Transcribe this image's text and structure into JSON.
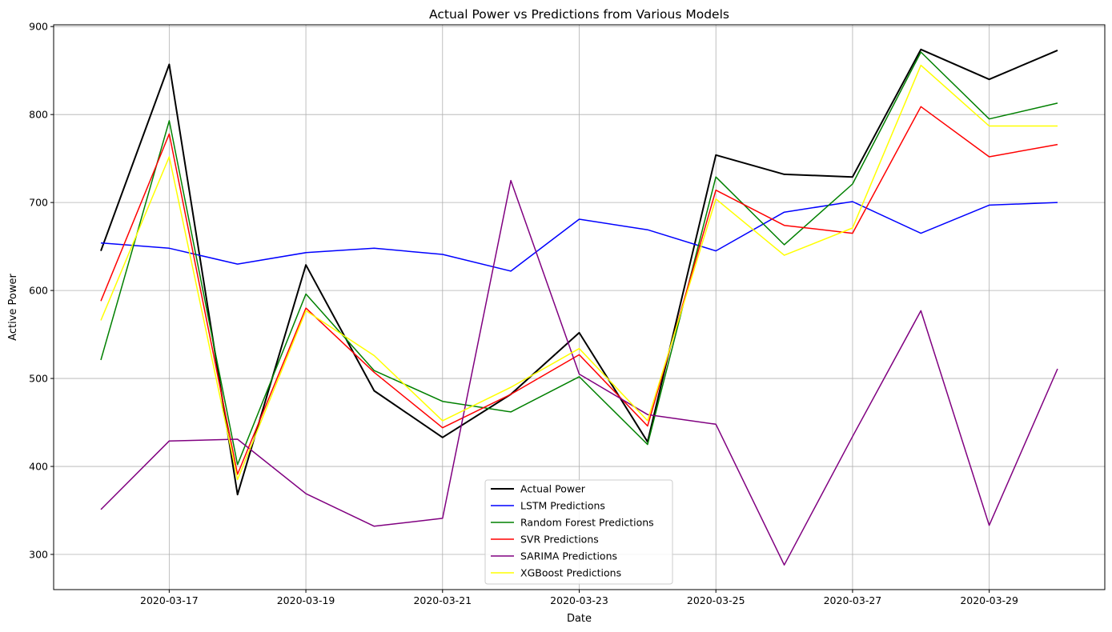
{
  "chart_data": {
    "type": "line",
    "title": "Actual Power vs Predictions from Various Models",
    "xlabel": "Date",
    "ylabel": "Active Power",
    "x": [
      "2020-03-16",
      "2020-03-17",
      "2020-03-18",
      "2020-03-19",
      "2020-03-20",
      "2020-03-21",
      "2020-03-22",
      "2020-03-23",
      "2020-03-24",
      "2020-03-25",
      "2020-03-26",
      "2020-03-27",
      "2020-03-28",
      "2020-03-29",
      "2020-03-30"
    ],
    "x_ticks": [
      "2020-03-17",
      "2020-03-19",
      "2020-03-21",
      "2020-03-23",
      "2020-03-25",
      "2020-03-27",
      "2020-03-29"
    ],
    "y_ticks": [
      300,
      400,
      500,
      600,
      700,
      800,
      900
    ],
    "ylim": [
      260,
      902
    ],
    "grid": true,
    "legend_position": "bottom-center",
    "series": [
      {
        "name": "Actual Power",
        "color": "#000000",
        "width": 2,
        "values": [
          645,
          857,
          368,
          629,
          486,
          433,
          482,
          552,
          428,
          754,
          732,
          729,
          874,
          840,
          873
        ]
      },
      {
        "name": "LSTM Predictions",
        "color": "#0000ff",
        "width": 1.5,
        "values": [
          654,
          648,
          630,
          643,
          648,
          641,
          622,
          681,
          669,
          645,
          689,
          701,
          665,
          697,
          700
        ]
      },
      {
        "name": "Random Forest Predictions",
        "color": "#008000",
        "width": 1.5,
        "values": [
          521,
          793,
          402,
          596,
          509,
          474,
          462,
          502,
          425,
          729,
          652,
          721,
          871,
          795,
          813
        ]
      },
      {
        "name": "SVR Predictions",
        "color": "#ff0000",
        "width": 1.5,
        "values": [
          588,
          778,
          391,
          580,
          507,
          444,
          482,
          527,
          446,
          714,
          674,
          665,
          809,
          752,
          766
        ]
      },
      {
        "name": "SARIMA Predictions",
        "color": "#800080",
        "width": 1.5,
        "values": [
          351,
          429,
          431,
          369,
          332,
          341,
          725,
          505,
          459,
          448,
          288,
          434,
          577,
          333,
          511
        ]
      },
      {
        "name": "XGBoost Predictions",
        "color": "#ffff00",
        "width": 1.5,
        "values": [
          566,
          752,
          385,
          577,
          526,
          452,
          490,
          534,
          452,
          704,
          640,
          671,
          856,
          787,
          787
        ]
      }
    ]
  }
}
